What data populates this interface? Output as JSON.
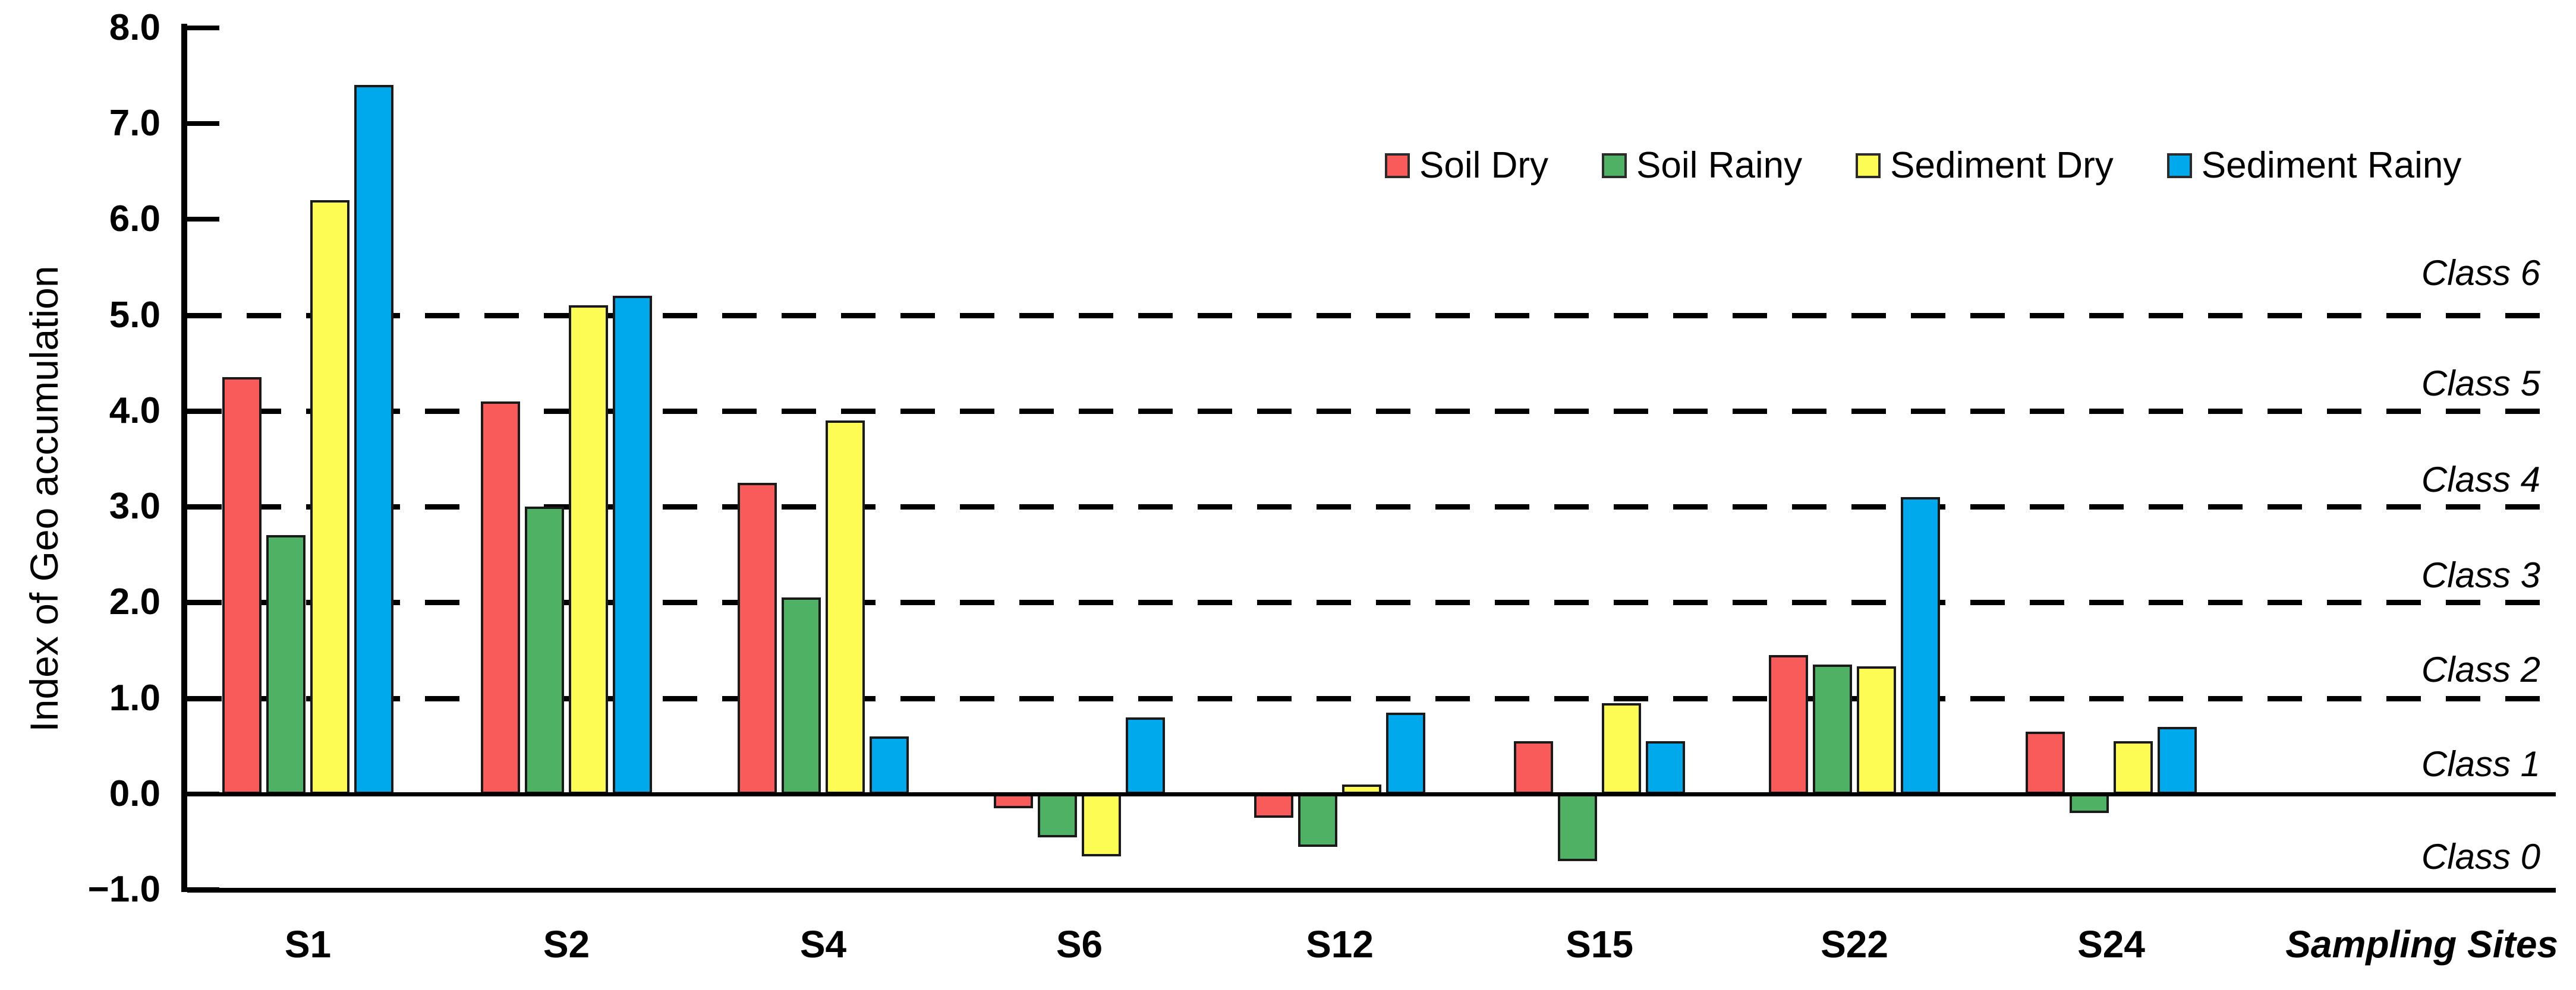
{
  "chart_data": {
    "type": "bar",
    "title": "",
    "categories": [
      "S1",
      "S2",
      "S4",
      "S6",
      "S12",
      "S15",
      "S22",
      "S24"
    ],
    "series": [
      {
        "name": "Soil Dry",
        "color": "#F95B5B",
        "values": [
          4.35,
          4.1,
          3.25,
          -0.15,
          -0.25,
          0.55,
          1.45,
          0.65
        ]
      },
      {
        "name": "Soil Rainy",
        "color": "#4FB163",
        "values": [
          2.7,
          3.0,
          2.05,
          -0.45,
          -0.55,
          -0.7,
          1.35,
          -0.2
        ]
      },
      {
        "name": "Sediment Dry",
        "color": "#FCFC55",
        "values": [
          6.2,
          5.1,
          3.9,
          -0.65,
          0.1,
          0.95,
          1.33,
          0.55
        ]
      },
      {
        "name": "Sediment Rainy",
        "color": "#00A9EC",
        "values": [
          7.4,
          5.2,
          0.6,
          0.8,
          0.85,
          0.55,
          3.1,
          0.7
        ]
      }
    ],
    "ylabel": "Index of Geo accumulation",
    "xlabel": "Sampling Sites",
    "ylim": [
      -1.0,
      8.0
    ],
    "ytick_values": [
      8,
      7,
      6,
      5,
      4,
      3,
      2,
      1,
      0,
      -1
    ],
    "ytick_labels": [
      "8.0",
      "7.0",
      "6.0",
      "5.0",
      "4.0",
      "3.0",
      "2.0",
      "1.0",
      "0.0",
      "−1.0"
    ],
    "gridlines": [
      5.0,
      4.0,
      3.0,
      2.0,
      1.0
    ],
    "gridline_style": "dashed",
    "legend_position": "top-right",
    "class_labels": [
      "Class 6",
      "Class 5",
      "Class 4",
      "Class 3",
      "Class 2",
      "Class 1",
      "Class 0"
    ],
    "colors": {
      "background": "#FFFFFF",
      "axis": "#000000",
      "bar_border": "#1A1A1A"
    }
  }
}
